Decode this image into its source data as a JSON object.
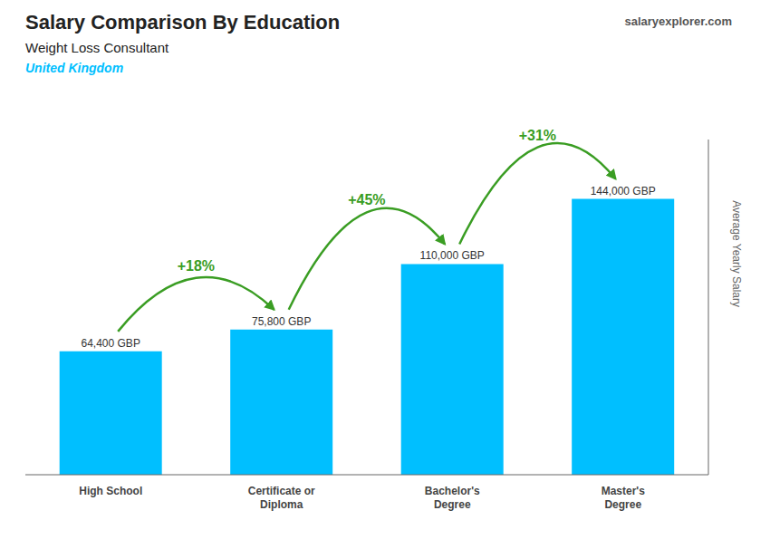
{
  "chart_data": {
    "type": "bar",
    "title": "Salary Comparison By Education",
    "subtitle": "Weight Loss Consultant",
    "ylabel": "Average Yearly Salary",
    "categories": [
      "High School",
      "Certificate or\nDiploma",
      "Bachelor's\nDegree",
      "Master's\nDegree"
    ],
    "values": [
      64400,
      75800,
      110000,
      144000
    ],
    "value_labels": [
      "64,400 GBP",
      "75,800 GBP",
      "110,000 GBP",
      "144,000 GBP"
    ],
    "data_labels": true,
    "color": "#00BFFF",
    "ylim": [
      0,
      175000
    ],
    "grid": false,
    "tick_labels": "x",
    "annotations": [
      {
        "text": "United Kingdom"
      },
      {
        "text": "salaryexplorer.com"
      },
      {
        "text": "+18%",
        "from": 0,
        "to": 1
      },
      {
        "text": "+45%",
        "from": 1,
        "to": 2
      },
      {
        "text": "+31%",
        "from": 2,
        "to": 3
      }
    ]
  }
}
